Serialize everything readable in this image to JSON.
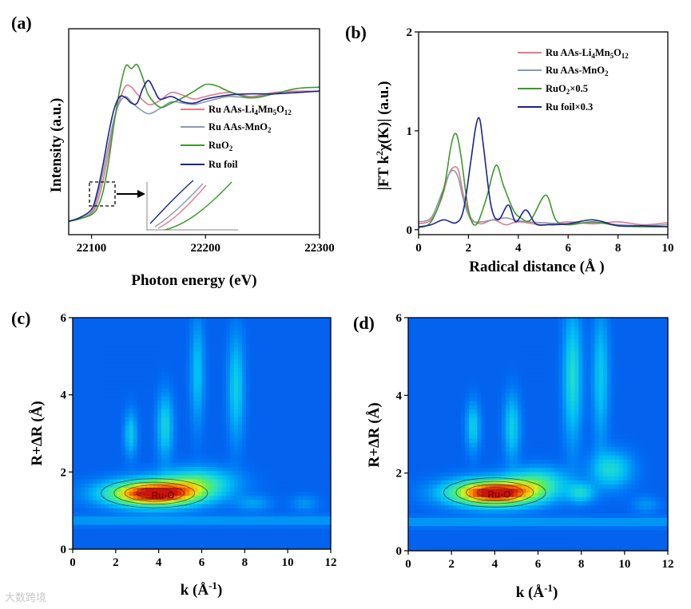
{
  "watermark": "大数跨境",
  "colors": {
    "li": "#e07b88",
    "mno2": "#8a9ab0",
    "ruo2": "#3c9a2c",
    "rufoil": "#1c2490"
  },
  "chart_data": [
    {
      "panel": "(a)",
      "type": "line",
      "xlabel": "Photon energy (eV)",
      "ylabel": "Intensity (a.u.)",
      "xlim": [
        22080,
        22300
      ],
      "ylim": [
        0,
        1.55
      ],
      "xticks": [
        22100,
        22200,
        22300
      ],
      "xtick_labels": [
        "22100",
        "22200",
        "22300"
      ],
      "legend": [
        "Ru AAs-Li4Mn5O12",
        "Ru AAs-MnO2",
        "RuO2",
        "Ru foil"
      ],
      "inset_marker": "dashed box near the absorption edge (~22100 eV) magnified in inset",
      "series": [
        {
          "name": "Ru AAs-Li4Mn5O12",
          "color_key": "li",
          "x": [
            22080,
            22090,
            22100,
            22105,
            22110,
            22115,
            22120,
            22125,
            22130,
            22135,
            22140,
            22150,
            22160,
            22170,
            22180,
            22190,
            22200,
            22220,
            22240,
            22260,
            22280,
            22300
          ],
          "y": [
            0.1,
            0.12,
            0.16,
            0.24,
            0.4,
            0.62,
            0.86,
            1.02,
            1.12,
            1.11,
            1.06,
            0.98,
            1.01,
            1.07,
            1.05,
            1.02,
            1.04,
            1.07,
            1.04,
            1.07,
            1.08,
            1.08
          ]
        },
        {
          "name": "Ru AAs-MnO2",
          "color_key": "mno2",
          "x": [
            22080,
            22090,
            22100,
            22105,
            22110,
            22115,
            22120,
            22125,
            22130,
            22135,
            22140,
            22150,
            22160,
            22170,
            22180,
            22190,
            22200,
            22220,
            22240,
            22260,
            22280,
            22300
          ],
          "y": [
            0.1,
            0.12,
            0.17,
            0.28,
            0.46,
            0.68,
            0.88,
            1.0,
            1.04,
            1.0,
            0.96,
            0.91,
            0.95,
            1.0,
            0.99,
            0.98,
            1.0,
            1.04,
            1.03,
            1.06,
            1.07,
            1.08
          ]
        },
        {
          "name": "RuO2",
          "color_key": "ruo2",
          "x": [
            22080,
            22090,
            22100,
            22105,
            22110,
            22115,
            22120,
            22125,
            22130,
            22135,
            22140,
            22145,
            22150,
            22160,
            22170,
            22180,
            22190,
            22200,
            22210,
            22220,
            22240,
            22260,
            22280,
            22300
          ],
          "y": [
            0.1,
            0.12,
            0.15,
            0.2,
            0.32,
            0.55,
            0.85,
            1.1,
            1.27,
            1.25,
            1.28,
            1.18,
            1.05,
            0.96,
            0.99,
            1.03,
            1.08,
            1.13,
            1.12,
            1.08,
            1.03,
            1.06,
            1.1,
            1.11
          ]
        },
        {
          "name": "Ru foil",
          "color_key": "rufoil",
          "x": [
            22080,
            22090,
            22100,
            22105,
            22110,
            22115,
            22120,
            22125,
            22130,
            22135,
            22140,
            22145,
            22150,
            22155,
            22160,
            22170,
            22180,
            22190,
            22200,
            22220,
            22240,
            22260,
            22280,
            22300
          ],
          "y": [
            0.1,
            0.13,
            0.19,
            0.32,
            0.52,
            0.76,
            0.95,
            1.04,
            1.03,
            0.99,
            0.99,
            1.1,
            1.16,
            1.09,
            1.02,
            1.04,
            1.0,
            0.99,
            1.02,
            1.05,
            1.06,
            1.06,
            1.07,
            1.08
          ]
        }
      ]
    },
    {
      "panel": "(b)",
      "type": "line",
      "xlabel": "Radical distance (Å )",
      "ylabel": "|FT k2χ(K)| (a.u.)",
      "xlim": [
        0,
        10
      ],
      "ylim": [
        -0.05,
        2
      ],
      "xticks": [
        0,
        2,
        4,
        6,
        8,
        10
      ],
      "xtick_labels": [
        "0",
        "2",
        "4",
        "6",
        "8",
        "10"
      ],
      "yticks": [
        0,
        1,
        2
      ],
      "ytick_labels": [
        "0",
        "1",
        "2"
      ],
      "legend": [
        "Ru AAs-Li4Mn5O12",
        "Ru AAs-MnO2",
        "RuO2×0.5",
        "Ru foil×0.3"
      ],
      "series": [
        {
          "name": "Ru AAs-Li4Mn5O12",
          "color_key": "li",
          "x": [
            0,
            0.5,
            0.9,
            1.2,
            1.4,
            1.6,
            1.8,
            2.1,
            2.5,
            3.0,
            3.5,
            4.0,
            5.0,
            6.0,
            7.0,
            8.0,
            9.0,
            10.0
          ],
          "y": [
            0.06,
            0.1,
            0.3,
            0.55,
            0.63,
            0.6,
            0.35,
            0.12,
            0.06,
            0.1,
            0.05,
            0.08,
            0.05,
            0.08,
            0.06,
            0.08,
            0.05,
            0.07
          ]
        },
        {
          "name": "Ru AAs-MnO2",
          "color_key": "mno2",
          "x": [
            0,
            0.5,
            0.9,
            1.2,
            1.4,
            1.6,
            1.8,
            2.1,
            2.5,
            3.0,
            3.5,
            4.0,
            5.0,
            6.0,
            7.0,
            8.0,
            9.0,
            10.0
          ],
          "y": [
            0.08,
            0.12,
            0.35,
            0.55,
            0.6,
            0.52,
            0.3,
            0.1,
            0.08,
            0.1,
            0.12,
            0.09,
            0.07,
            0.06,
            0.07,
            0.05,
            0.04,
            0.05
          ]
        },
        {
          "name": "RuO2×0.5",
          "color_key": "ruo2",
          "x": [
            0,
            0.5,
            1.0,
            1.3,
            1.5,
            1.7,
            2.0,
            2.3,
            2.7,
            3.1,
            3.4,
            3.8,
            4.1,
            4.5,
            5.1,
            5.5,
            6.0,
            7.0,
            8.0,
            9.0,
            10.0
          ],
          "y": [
            0.02,
            0.08,
            0.4,
            0.85,
            0.97,
            0.75,
            0.2,
            0.05,
            0.3,
            0.65,
            0.45,
            0.2,
            0.12,
            0.1,
            0.35,
            0.1,
            0.05,
            0.08,
            0.04,
            0.03,
            0.03
          ]
        },
        {
          "name": "Ru foil×0.3",
          "color_key": "rufoil",
          "x": [
            0,
            0.5,
            1.0,
            1.5,
            1.8,
            2.1,
            2.3,
            2.45,
            2.6,
            2.9,
            3.2,
            3.6,
            3.9,
            4.3,
            4.7,
            5.2,
            6.0,
            7.0,
            8.0,
            9.0,
            10.0
          ],
          "y": [
            0.03,
            0.05,
            0.1,
            0.07,
            0.2,
            0.7,
            1.05,
            1.12,
            0.85,
            0.25,
            0.1,
            0.25,
            0.08,
            0.2,
            0.06,
            0.05,
            0.06,
            0.1,
            0.04,
            0.04,
            0.03
          ]
        }
      ]
    },
    {
      "panel": "(c)",
      "type": "heatmap",
      "xlabel": "k (Å-1)",
      "ylabel": "R+ΔR (Å)",
      "xlim": [
        0,
        12
      ],
      "ylim": [
        0,
        6
      ],
      "xticks": [
        0,
        2,
        4,
        6,
        8,
        10,
        12
      ],
      "xtick_labels": [
        "0",
        "2",
        "4",
        "6",
        "8",
        "10",
        "12"
      ],
      "yticks": [
        0,
        2,
        4,
        6
      ],
      "ytick_labels": [
        "0",
        "2",
        "4",
        "6"
      ],
      "annotation": {
        "text": "Ru-O",
        "k": 4.2,
        "r": 1.4
      },
      "lobes": [
        {
          "k": 3.8,
          "r": 1.45,
          "sk": 2.1,
          "sr": 0.32,
          "a": 1.0
        },
        {
          "k": 5.8,
          "r": 1.75,
          "sk": 1.6,
          "sr": 0.35,
          "a": 0.35
        },
        {
          "k": 2.7,
          "r": 3.0,
          "sk": 0.28,
          "sr": 0.55,
          "a": 0.22
        },
        {
          "k": 4.3,
          "r": 3.2,
          "sk": 0.35,
          "sr": 0.8,
          "a": 0.26
        },
        {
          "k": 5.8,
          "r": 4.6,
          "sk": 0.3,
          "sr": 1.3,
          "a": 0.2
        },
        {
          "k": 7.6,
          "r": 4.2,
          "sk": 0.35,
          "sr": 1.3,
          "a": 0.24
        },
        {
          "k": 8.4,
          "r": 1.2,
          "sk": 0.8,
          "sr": 0.2,
          "a": 0.12
        },
        {
          "k": 10.8,
          "r": 1.2,
          "sk": 0.6,
          "sr": 0.2,
          "a": 0.1
        }
      ]
    },
    {
      "panel": "(d)",
      "type": "heatmap",
      "xlabel": "k (Å-1)",
      "ylabel": "R+ΔR (Å)",
      "xlim": [
        0,
        12
      ],
      "ylim": [
        0,
        6
      ],
      "xticks": [
        0,
        2,
        4,
        6,
        8,
        10,
        12
      ],
      "xtick_labels": [
        "0",
        "2",
        "4",
        "6",
        "8",
        "10",
        "12"
      ],
      "yticks": [
        0,
        2,
        4,
        6
      ],
      "ytick_labels": [
        "0",
        "2",
        "4",
        "6"
      ],
      "annotation": {
        "text": "Ru-O",
        "k": 4.2,
        "r": 1.45
      },
      "lobes": [
        {
          "k": 4.0,
          "r": 1.5,
          "sk": 2.0,
          "sr": 0.32,
          "a": 1.0
        },
        {
          "k": 6.0,
          "r": 1.8,
          "sk": 1.3,
          "sr": 0.35,
          "a": 0.3
        },
        {
          "k": 8.0,
          "r": 1.5,
          "sk": 0.6,
          "sr": 0.25,
          "a": 0.25
        },
        {
          "k": 9.4,
          "r": 2.1,
          "sk": 0.9,
          "sr": 0.45,
          "a": 0.28
        },
        {
          "k": 3.0,
          "r": 3.2,
          "sk": 0.3,
          "sr": 0.6,
          "a": 0.24
        },
        {
          "k": 4.8,
          "r": 3.2,
          "sk": 0.35,
          "sr": 0.8,
          "a": 0.24
        },
        {
          "k": 7.6,
          "r": 4.5,
          "sk": 0.4,
          "sr": 1.6,
          "a": 0.3
        },
        {
          "k": 8.9,
          "r": 4.5,
          "sk": 0.35,
          "sr": 1.6,
          "a": 0.22
        },
        {
          "k": 11.0,
          "r": 1.2,
          "sk": 0.6,
          "sr": 0.2,
          "a": 0.1
        }
      ]
    }
  ]
}
